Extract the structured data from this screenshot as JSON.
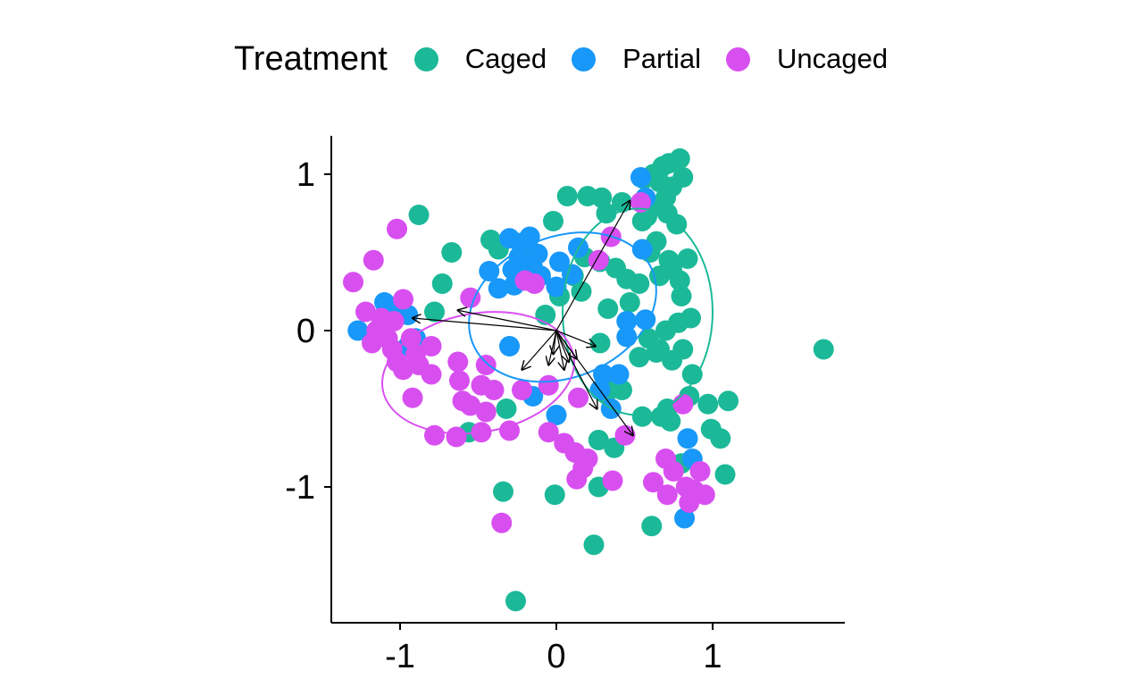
{
  "chart_data": {
    "type": "scatter",
    "legend": {
      "title": "Treatment",
      "position": "top",
      "entries": [
        "Caged",
        "Partial",
        "Uncaged"
      ]
    },
    "colors": {
      "Caged": "#1bb998",
      "Partial": "#1898f8",
      "Uncaged": "#d84ff0"
    },
    "xlim": [
      -1.45,
      1.85
    ],
    "ylim": [
      -1.85,
      1.25
    ],
    "x_ticks": [
      -1,
      0,
      1
    ],
    "y_ticks": [
      -1,
      0,
      1
    ],
    "grid": false,
    "series": [
      {
        "name": "Caged",
        "points": [
          [
            -0.37,
            0.52
          ],
          [
            -0.67,
            0.5
          ],
          [
            -0.73,
            0.3
          ],
          [
            -0.88,
            0.74
          ],
          [
            -0.42,
            0.58
          ],
          [
            -0.2,
            0.5
          ],
          [
            -0.16,
            0.39
          ],
          [
            -0.02,
            0.7
          ],
          [
            0.07,
            0.86
          ],
          [
            0.2,
            0.86
          ],
          [
            0.29,
            0.85
          ],
          [
            0.32,
            0.75
          ],
          [
            0.42,
            0.82
          ],
          [
            0.56,
            0.97
          ],
          [
            0.62,
            1.0
          ],
          [
            0.68,
            1.05
          ],
          [
            0.72,
            1.07
          ],
          [
            0.79,
            1.1
          ],
          [
            0.66,
            0.95
          ],
          [
            0.74,
            0.92
          ],
          [
            0.81,
            0.98
          ],
          [
            0.7,
            0.85
          ],
          [
            0.63,
            0.8
          ],
          [
            0.58,
            0.73
          ],
          [
            0.71,
            0.75
          ],
          [
            0.77,
            0.68
          ],
          [
            0.55,
            0.7
          ],
          [
            0.64,
            0.57
          ],
          [
            0.6,
            0.5
          ],
          [
            0.72,
            0.45
          ],
          [
            0.84,
            0.46
          ],
          [
            0.74,
            0.39
          ],
          [
            0.79,
            0.32
          ],
          [
            0.66,
            0.35
          ],
          [
            0.53,
            0.3
          ],
          [
            0.45,
            0.33
          ],
          [
            0.38,
            0.4
          ],
          [
            0.28,
            0.44
          ],
          [
            0.18,
            0.47
          ],
          [
            0.11,
            0.35
          ],
          [
            0.16,
            0.25
          ],
          [
            0.02,
            0.22
          ],
          [
            -0.07,
            0.1
          ],
          [
            0.33,
            0.14
          ],
          [
            0.47,
            0.18
          ],
          [
            0.8,
            0.22
          ],
          [
            0.86,
            0.08
          ],
          [
            0.78,
            0.05
          ],
          [
            0.7,
            0.0
          ],
          [
            0.59,
            -0.05
          ],
          [
            0.66,
            -0.12
          ],
          [
            0.81,
            -0.12
          ],
          [
            0.74,
            -0.19
          ],
          [
            0.64,
            -0.14
          ],
          [
            0.53,
            -0.17
          ],
          [
            0.87,
            -0.28
          ],
          [
            0.36,
            -0.33
          ],
          [
            0.32,
            -0.4
          ],
          [
            0.42,
            -0.38
          ],
          [
            0.85,
            -0.42
          ],
          [
            1.1,
            -0.45
          ],
          [
            0.97,
            -0.47
          ],
          [
            0.71,
            -0.5
          ],
          [
            0.73,
            -0.58
          ],
          [
            0.67,
            -0.55
          ],
          [
            0.55,
            -0.55
          ],
          [
            0.99,
            -0.63
          ],
          [
            1.05,
            -0.69
          ],
          [
            0.27,
            -0.7
          ],
          [
            0.37,
            -0.75
          ],
          [
            1.08,
            -0.92
          ],
          [
            0.27,
            -1.0
          ],
          [
            -0.34,
            -1.03
          ],
          [
            -0.01,
            -1.05
          ],
          [
            0.61,
            -1.25
          ],
          [
            0.24,
            -1.37
          ],
          [
            -0.26,
            -1.73
          ],
          [
            1.71,
            -0.12
          ],
          [
            0.28,
            -0.08
          ],
          [
            -0.32,
            -0.5
          ],
          [
            -0.56,
            -0.65
          ],
          [
            0.8,
            -0.85
          ],
          [
            -0.78,
            0.12
          ]
        ]
      },
      {
        "name": "Partial",
        "points": [
          [
            0.54,
            0.98
          ],
          [
            0.57,
            0.85
          ],
          [
            0.55,
            0.52
          ],
          [
            -0.3,
            0.59
          ],
          [
            -0.23,
            0.56
          ],
          [
            -0.17,
            0.6
          ],
          [
            -0.24,
            0.47
          ],
          [
            -0.12,
            0.49
          ],
          [
            0.14,
            0.53
          ],
          [
            0.02,
            0.44
          ],
          [
            -0.15,
            0.4
          ],
          [
            -0.28,
            0.39
          ],
          [
            -0.43,
            0.38
          ],
          [
            0.1,
            0.36
          ],
          [
            -0.37,
            0.27
          ],
          [
            -0.27,
            0.29
          ],
          [
            -0.1,
            0.35
          ],
          [
            0.0,
            0.28
          ],
          [
            -1.1,
            0.18
          ],
          [
            -1.05,
            0.15
          ],
          [
            -0.95,
            0.1
          ],
          [
            -1.27,
            0.0
          ],
          [
            -0.9,
            -0.05
          ],
          [
            -0.95,
            -0.1
          ],
          [
            -0.3,
            -0.1
          ],
          [
            0.57,
            0.07
          ],
          [
            0.45,
            0.06
          ],
          [
            0.45,
            -0.04
          ],
          [
            0.4,
            -0.28
          ],
          [
            0.3,
            -0.28
          ],
          [
            0.28,
            -0.38
          ],
          [
            -0.15,
            -0.42
          ],
          [
            0.35,
            -0.5
          ],
          [
            0.0,
            -0.54
          ],
          [
            0.84,
            -0.69
          ],
          [
            0.87,
            -0.82
          ],
          [
            0.82,
            -1.2
          ]
        ]
      },
      {
        "name": "Uncaged",
        "points": [
          [
            -1.02,
            0.65
          ],
          [
            -1.17,
            0.45
          ],
          [
            -1.3,
            0.31
          ],
          [
            -0.55,
            0.21
          ],
          [
            -0.2,
            0.32
          ],
          [
            -0.14,
            0.3
          ],
          [
            0.35,
            0.6
          ],
          [
            0.27,
            0.45
          ],
          [
            0.54,
            0.82
          ],
          [
            -1.22,
            0.12
          ],
          [
            -1.12,
            0.08
          ],
          [
            -1.04,
            0.06
          ],
          [
            -0.98,
            0.2
          ],
          [
            -1.15,
            0.0
          ],
          [
            -1.08,
            -0.05
          ],
          [
            -0.93,
            -0.05
          ],
          [
            -1.18,
            -0.08
          ],
          [
            -1.05,
            -0.12
          ],
          [
            -0.9,
            -0.15
          ],
          [
            -0.8,
            -0.1
          ],
          [
            -1.02,
            -0.2
          ],
          [
            -0.88,
            -0.22
          ],
          [
            -0.98,
            -0.25
          ],
          [
            -0.8,
            -0.28
          ],
          [
            -0.63,
            -0.2
          ],
          [
            -0.45,
            -0.22
          ],
          [
            -0.62,
            -0.32
          ],
          [
            -0.48,
            -0.35
          ],
          [
            -0.4,
            -0.38
          ],
          [
            -0.92,
            -0.43
          ],
          [
            -0.6,
            -0.45
          ],
          [
            -0.55,
            -0.48
          ],
          [
            -0.45,
            -0.52
          ],
          [
            -0.78,
            -0.67
          ],
          [
            -0.64,
            -0.68
          ],
          [
            -0.48,
            -0.65
          ],
          [
            -0.3,
            -0.64
          ],
          [
            -0.05,
            -0.65
          ],
          [
            -0.22,
            -0.38
          ],
          [
            -0.05,
            -0.35
          ],
          [
            0.14,
            -0.43
          ],
          [
            0.05,
            -0.72
          ],
          [
            0.12,
            -0.78
          ],
          [
            0.2,
            -0.82
          ],
          [
            0.17,
            -0.88
          ],
          [
            0.13,
            -0.95
          ],
          [
            0.36,
            -0.96
          ],
          [
            0.44,
            -0.67
          ],
          [
            0.7,
            -0.82
          ],
          [
            0.75,
            -0.9
          ],
          [
            0.62,
            -0.97
          ],
          [
            0.71,
            -1.05
          ],
          [
            0.83,
            -1.0
          ],
          [
            0.88,
            -1.02
          ],
          [
            0.95,
            -1.05
          ],
          [
            0.85,
            -1.1
          ],
          [
            0.92,
            -0.9
          ],
          [
            -0.35,
            -1.23
          ],
          [
            0.81,
            -0.47
          ]
        ]
      }
    ],
    "ellipses": [
      {
        "name": "Caged",
        "center": [
          0.52,
          0.12
        ],
        "radii": [
          0.48,
          0.66
        ],
        "angle": 0
      },
      {
        "name": "Partial",
        "center": [
          0.04,
          0.15
        ],
        "radii": [
          0.62,
          0.45
        ],
        "angle": -22
      },
      {
        "name": "Uncaged",
        "center": [
          -0.5,
          -0.27
        ],
        "radii": [
          0.62,
          0.38
        ],
        "angle": -10
      }
    ],
    "arrows": [
      [
        0.47,
        0.83
      ],
      [
        -0.92,
        0.08
      ],
      [
        -0.63,
        0.13
      ],
      [
        0.25,
        -0.1
      ],
      [
        -0.22,
        -0.25
      ],
      [
        0.49,
        -0.67
      ],
      [
        0.26,
        -0.5
      ],
      [
        0.08,
        -0.2
      ],
      [
        -0.05,
        -0.22
      ],
      [
        0.13,
        -0.18
      ],
      [
        -0.02,
        -0.15
      ],
      [
        0.05,
        -0.25
      ]
    ]
  }
}
